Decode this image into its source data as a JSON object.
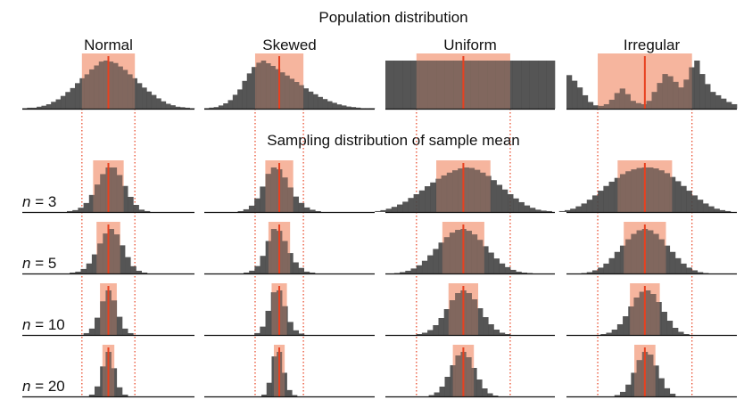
{
  "chart_data": {
    "type": "bar",
    "title": "Population distribution",
    "subtitle": "Sampling distribution of sample mean",
    "columns": [
      "Normal",
      "Skewed",
      "Uniform",
      "Irregular"
    ],
    "rows": [
      {
        "n_label": "",
        "n_value": ""
      },
      {
        "n_label": "n",
        "n_value": " = 3"
      },
      {
        "n_label": "n",
        "n_value": " = 5"
      },
      {
        "n_label": "n",
        "n_value": " = 10"
      },
      {
        "n_label": "n",
        "n_value": " = 20"
      }
    ],
    "x_range": [
      0,
      1
    ],
    "population_sd": {
      "Normal": 0.1537,
      "Skewed": 0.1417,
      "Uniform": 0.2766,
      "Irregular": 0.2766
    },
    "panels": [
      [
        {
          "mean": 0.5,
          "sd": 0.1537,
          "values": [
            1,
            2,
            2,
            4,
            6,
            9,
            14,
            19,
            26,
            34,
            42,
            52,
            62,
            70,
            80,
            88,
            96,
            98,
            96,
            93,
            86,
            79,
            70,
            62,
            52,
            43,
            35,
            28,
            21,
            15,
            10,
            7,
            4,
            3,
            2,
            1
          ]
        },
        {
          "mean": 0.5,
          "sd": 0.0887,
          "values": [
            2,
            4,
            9,
            19,
            36,
            58,
            80,
            94,
            94,
            78,
            55,
            32,
            15,
            5,
            2
          ]
        },
        {
          "mean": 0.5,
          "sd": 0.0687,
          "values": [
            2,
            4,
            10,
            22,
            42,
            66,
            88,
            98,
            86,
            62,
            36,
            16,
            6,
            2
          ]
        },
        {
          "mean": 0.5,
          "sd": 0.0486,
          "values": [
            4,
            14,
            38,
            74,
            98,
            76,
            40,
            14,
            4
          ]
        },
        {
          "mean": 0.5,
          "sd": 0.0344,
          "values": [
            4,
            22,
            66,
            98,
            62,
            20,
            4
          ]
        }
      ],
      [
        {
          "mean": 0.44,
          "sd": 0.1417,
          "values": [
            1,
            2,
            3,
            6,
            10,
            16,
            26,
            36,
            52,
            66,
            78,
            86,
            90,
            85,
            80,
            74,
            68,
            62,
            56,
            50,
            44,
            38,
            32,
            27,
            22,
            18,
            14,
            11,
            8,
            6,
            4,
            3,
            2,
            1,
            1,
            1
          ]
        },
        {
          "mean": 0.44,
          "sd": 0.0818,
          "values": [
            2,
            6,
            14,
            30,
            56,
            84,
            98,
            94,
            76,
            54,
            34,
            20,
            10,
            5,
            2
          ]
        },
        {
          "mean": 0.44,
          "sd": 0.0634,
          "values": [
            2,
            6,
            16,
            38,
            70,
            96,
            92,
            70,
            44,
            24,
            12,
            4,
            2
          ]
        },
        {
          "mean": 0.44,
          "sd": 0.0448,
          "values": [
            4,
            18,
            52,
            92,
            96,
            62,
            28,
            10,
            3
          ]
        },
        {
          "mean": 0.44,
          "sd": 0.0317,
          "values": [
            4,
            30,
            88,
            98,
            52,
            14,
            3
          ]
        }
      ],
      [
        {
          "mean": 0.46,
          "sd": 0.2766,
          "values": [
            100,
            100,
            100,
            100,
            100,
            100,
            100,
            100,
            100,
            100,
            100,
            100,
            100,
            100,
            100,
            100,
            100,
            100,
            100,
            100
          ]
        },
        {
          "mean": 0.46,
          "sd": 0.1597,
          "values": [
            2,
            4,
            7,
            11,
            16,
            22,
            30,
            38,
            46,
            55,
            63,
            71,
            78,
            84,
            89,
            93,
            95,
            94,
            90,
            84,
            77,
            68,
            58,
            48,
            38,
            29,
            21,
            14,
            9,
            5,
            3,
            2
          ]
        },
        {
          "mean": 0.46,
          "sd": 0.1237,
          "values": [
            1,
            3,
            6,
            11,
            18,
            28,
            40,
            54,
            68,
            80,
            90,
            96,
            98,
            94,
            86,
            74,
            60,
            46,
            33,
            22,
            14,
            8,
            4,
            2,
            1
          ]
        },
        {
          "mean": 0.46,
          "sd": 0.0875,
          "values": [
            2,
            5,
            11,
            22,
            38,
            58,
            78,
            94,
            100,
            94,
            80,
            60,
            40,
            24,
            12,
            5,
            2
          ]
        },
        {
          "mean": 0.46,
          "sd": 0.0619,
          "values": [
            3,
            9,
            22,
            44,
            70,
            92,
            100,
            88,
            64,
            38,
            18,
            7,
            2
          ]
        }
      ],
      [
        {
          "mean": 0.46,
          "sd": 0.2766,
          "values": [
            60,
            50,
            38,
            24,
            12,
            6,
            5,
            8,
            16,
            28,
            36,
            26,
            14,
            10,
            8,
            14,
            30,
            46,
            62,
            58,
            48,
            38,
            52,
            74,
            86,
            62,
            44,
            30,
            24,
            18,
            12,
            8
          ]
        },
        {
          "mean": 0.46,
          "sd": 0.1597,
          "values": [
            2,
            4,
            7,
            12,
            18,
            26,
            35,
            45,
            55,
            64,
            72,
            80,
            86,
            90,
            93,
            94,
            94,
            92,
            88,
            82,
            74,
            65,
            55,
            45,
            35,
            26,
            18,
            12,
            7,
            4,
            2
          ]
        },
        {
          "mean": 0.46,
          "sd": 0.1237,
          "values": [
            1,
            3,
            7,
            13,
            22,
            34,
            48,
            62,
            76,
            88,
            96,
            99,
            96,
            88,
            76,
            62,
            48,
            34,
            22,
            13,
            7,
            3,
            1
          ]
        },
        {
          "mean": 0.46,
          "sd": 0.0875,
          "values": [
            2,
            5,
            12,
            24,
            42,
            64,
            84,
            97,
            100,
            92,
            74,
            52,
            32,
            16,
            7,
            2
          ]
        },
        {
          "mean": 0.46,
          "sd": 0.0619,
          "values": [
            3,
            10,
            26,
            52,
            80,
            98,
            92,
            68,
            40,
            18,
            6
          ]
        }
      ]
    ],
    "colors": {
      "bar": "#474747",
      "band": "#f4a58a",
      "mean_line": "#e8401f",
      "dotted_line": "#e8401f",
      "axis": "#111111"
    }
  }
}
